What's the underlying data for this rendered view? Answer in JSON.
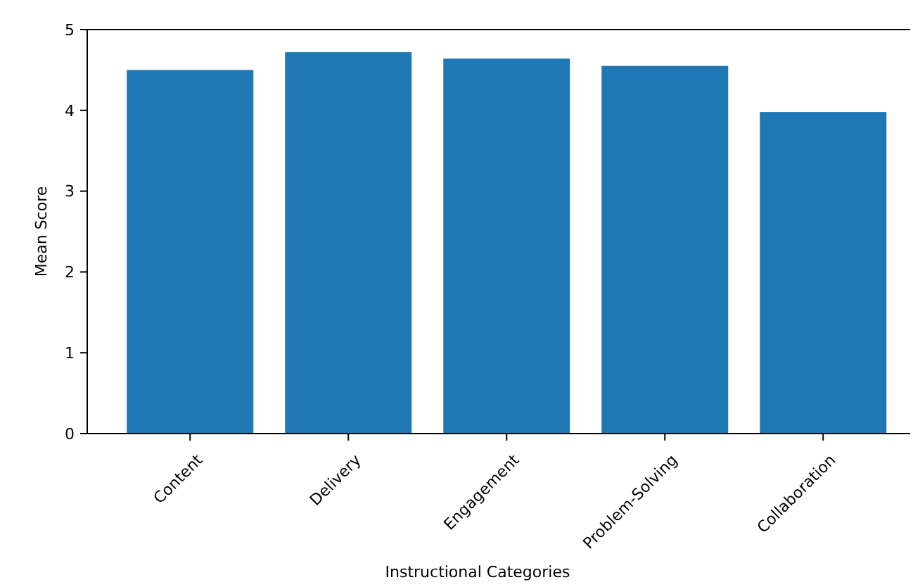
{
  "chart_data": {
    "type": "bar",
    "xlabel": "Instructional Categories",
    "ylabel": "Mean Score",
    "categories": [
      "Content",
      "Delivery",
      "Engagement",
      "Problem-Solving",
      "Collaboration"
    ],
    "values": [
      4.5,
      4.72,
      4.64,
      4.55,
      3.98
    ],
    "color": "#1f77b4",
    "ylim": [
      0,
      5
    ],
    "yticks": [
      0,
      1,
      2,
      3,
      4,
      5
    ],
    "grid": false
  }
}
